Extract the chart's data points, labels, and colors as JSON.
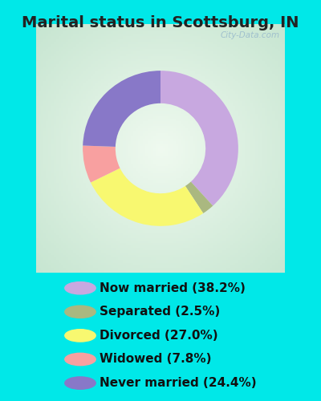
{
  "title": "Marital status in Scottsburg, IN",
  "slices": [
    38.2,
    2.5,
    27.0,
    7.8,
    24.4
  ],
  "labels": [
    "Now married (38.2%)",
    "Separated (2.5%)",
    "Divorced (27.0%)",
    "Widowed (7.8%)",
    "Never married (24.4%)"
  ],
  "colors": [
    "#c8a8e0",
    "#aab880",
    "#f8f870",
    "#f8a0a0",
    "#8878c8"
  ],
  "background_outer": "#00e8e8",
  "chart_bg_center": "#f0f8f0",
  "chart_bg_edge": "#c8e8d0",
  "title_fontsize": 14,
  "legend_fontsize": 11,
  "watermark": "City-Data.com",
  "donut_width": 0.42,
  "title_color": "#222222"
}
